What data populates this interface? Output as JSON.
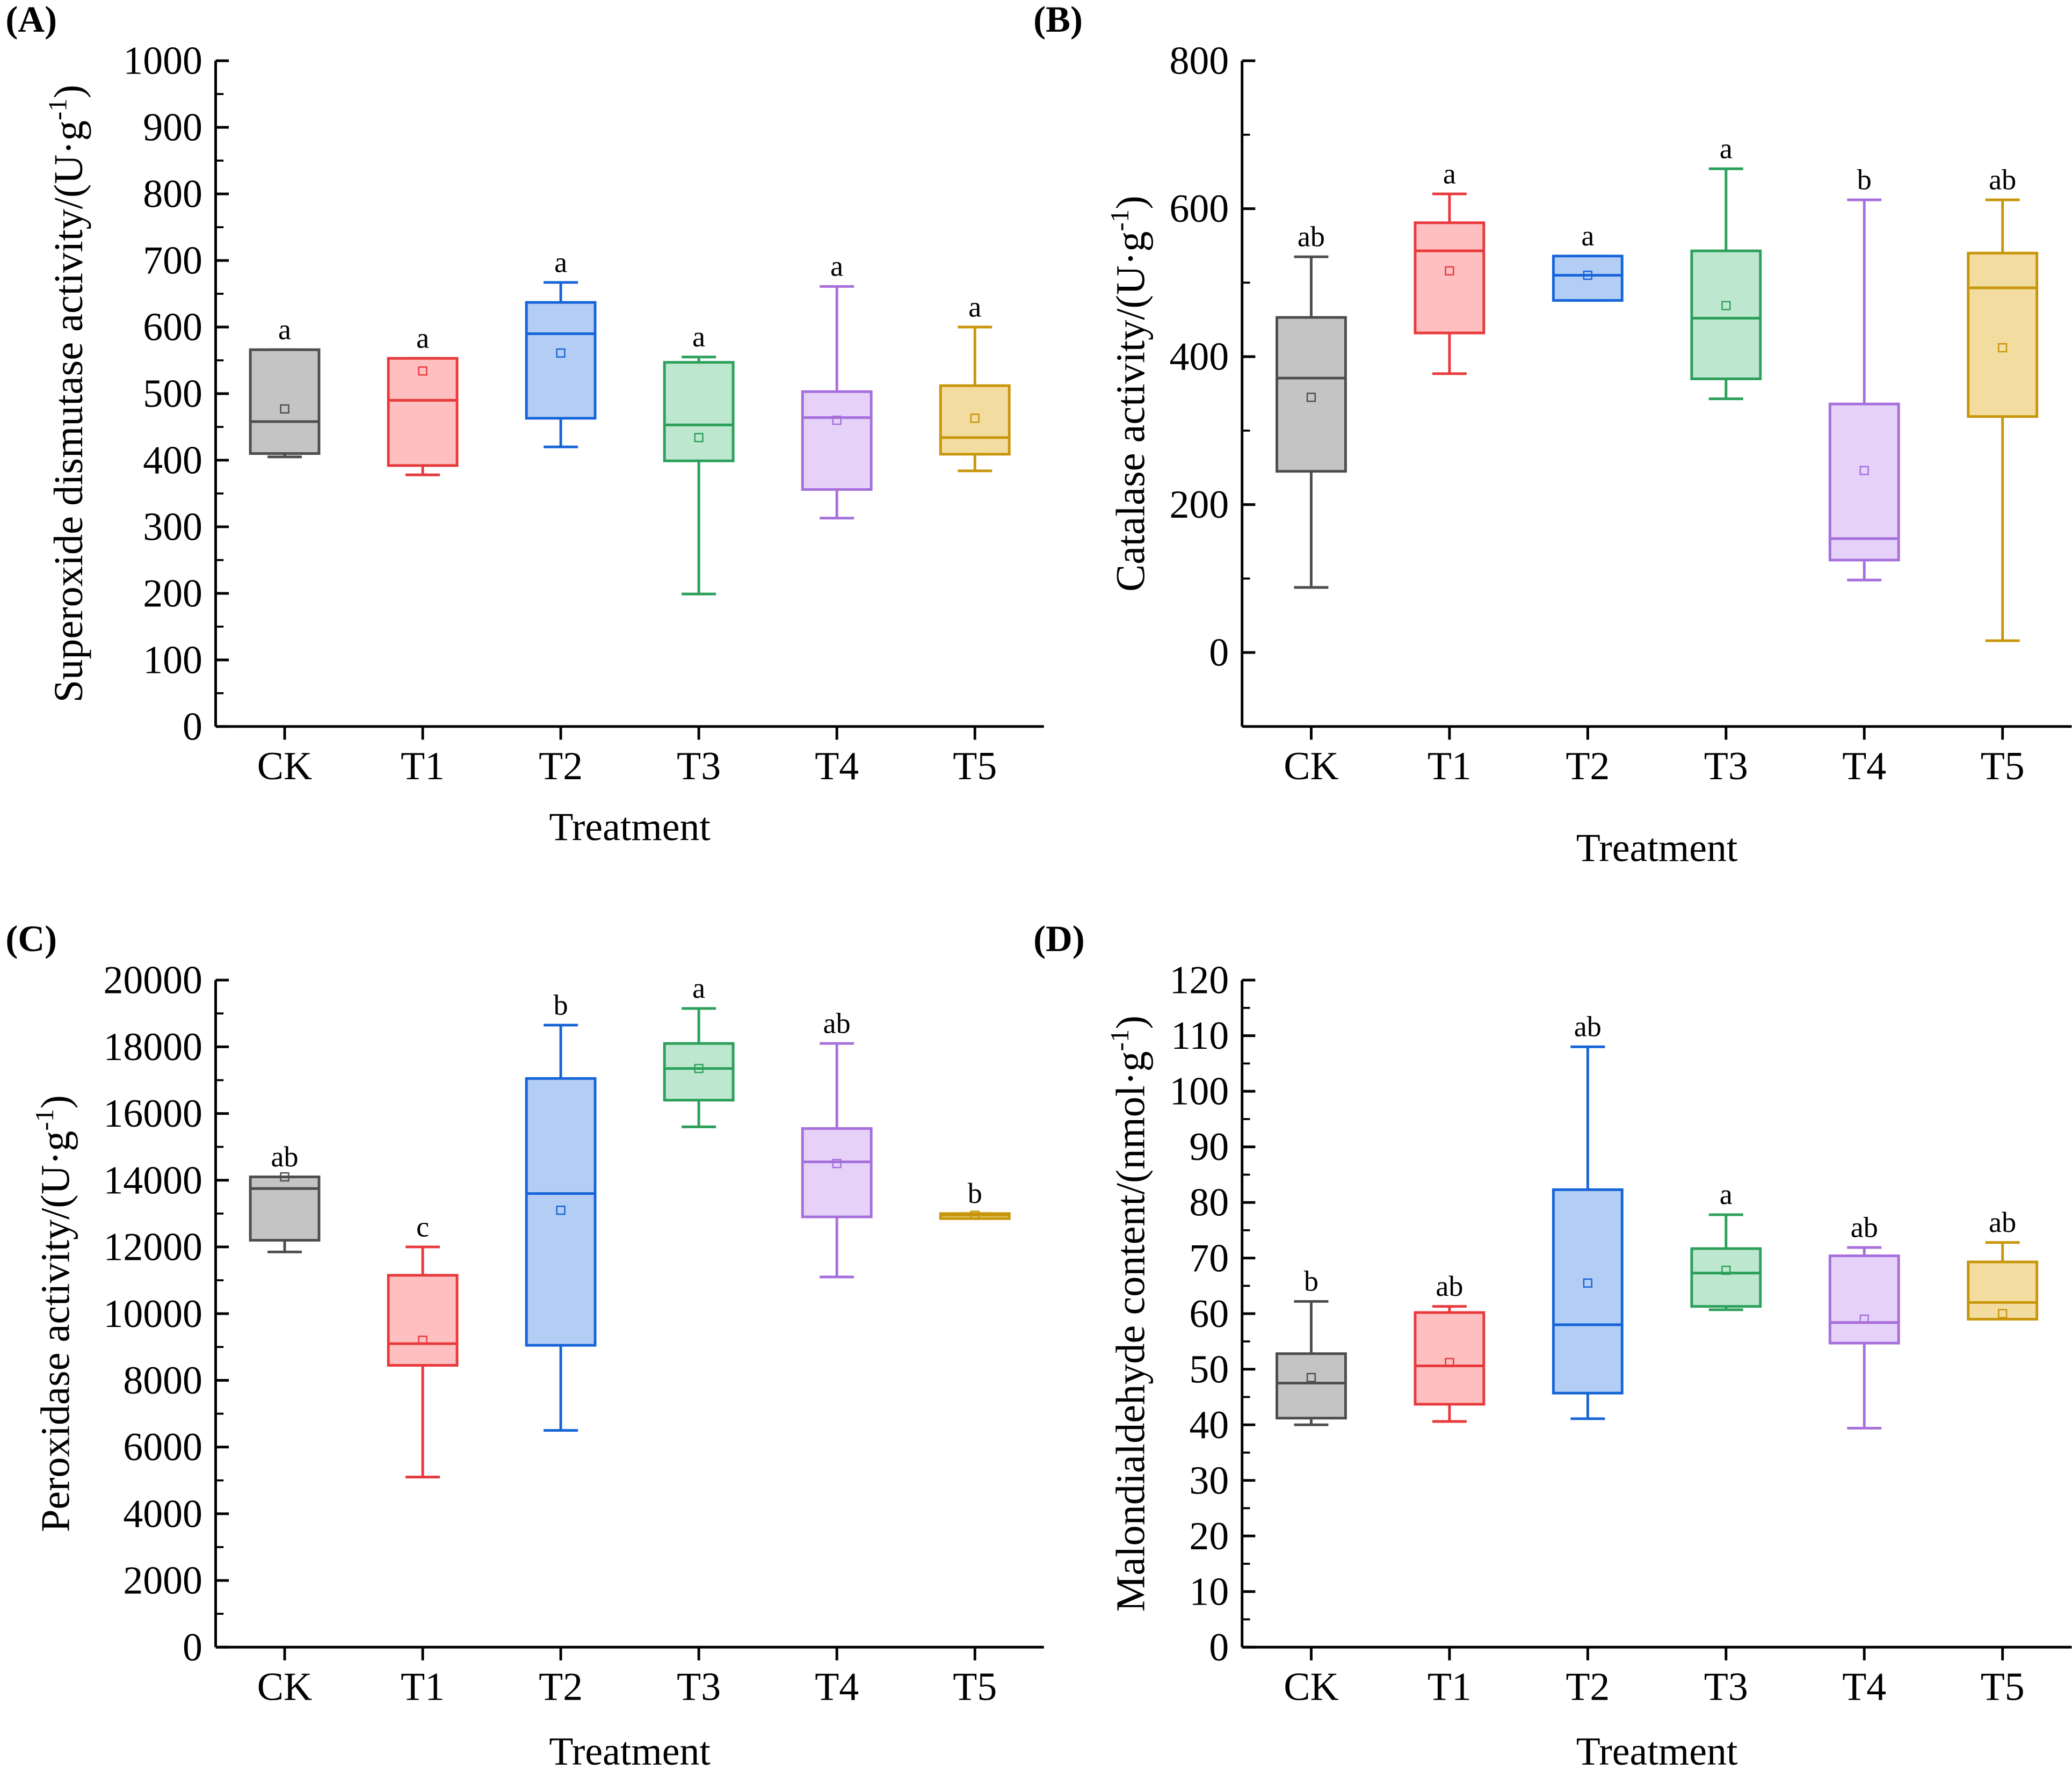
{
  "chart_data": [
    {
      "panel_label": "(A)",
      "type": "box",
      "title": "",
      "xlabel": "Treatment",
      "ylabel": {
        "main": "Superoxide dismutase activity/(U·g",
        "sup": "-1",
        "close": ")"
      },
      "ylim": [
        0,
        1000
      ],
      "yticks": [
        0,
        100,
        200,
        300,
        400,
        500,
        600,
        700,
        800,
        900,
        1000
      ],
      "categories": [
        "CK",
        "T1",
        "T2",
        "T3",
        "T4",
        "T5"
      ],
      "boxes": [
        {
          "min": 405,
          "q1": 410,
          "median": 458,
          "q3": 566,
          "max": 566,
          "mean": 477,
          "letter": "a"
        },
        {
          "min": 378,
          "q1": 392,
          "median": 490,
          "q3": 553,
          "max": 553,
          "mean": 534,
          "letter": "a"
        },
        {
          "min": 420,
          "q1": 463,
          "median": 590,
          "q3": 637,
          "max": 667,
          "mean": 561,
          "letter": "a"
        },
        {
          "min": 199,
          "q1": 399,
          "median": 453,
          "q3": 547,
          "max": 555,
          "mean": 434,
          "letter": "a"
        },
        {
          "min": 313,
          "q1": 356,
          "median": 464,
          "q3": 503,
          "max": 661,
          "mean": 460,
          "letter": "a"
        },
        {
          "min": 384,
          "q1": 409,
          "median": 434,
          "q3": 512,
          "max": 600,
          "mean": 463,
          "letter": "a"
        }
      ]
    },
    {
      "panel_label": "(B)",
      "type": "box",
      "title": "",
      "xlabel": "Treatment",
      "ylabel": {
        "main": "Catalase activity/(U·g",
        "sup": "-1",
        "close": ")"
      },
      "ylim": [
        -100,
        800
      ],
      "yticks": [
        0,
        200,
        400,
        600,
        800
      ],
      "categories": [
        "CK",
        "T1",
        "T2",
        "T3",
        "T4",
        "T5"
      ],
      "boxes": [
        {
          "min": 88,
          "q1": 245,
          "median": 371,
          "q3": 453,
          "max": 535,
          "mean": 345,
          "letter": "ab"
        },
        {
          "min": 377,
          "q1": 432,
          "median": 543,
          "q3": 581,
          "max": 620,
          "mean": 516,
          "letter": "a"
        },
        {
          "min": 476,
          "q1": 476,
          "median": 510,
          "q3": 536,
          "max": 536,
          "mean": 510,
          "letter": "a"
        },
        {
          "min": 343,
          "q1": 370,
          "median": 452,
          "q3": 543,
          "max": 654,
          "mean": 469,
          "letter": "a"
        },
        {
          "min": 98,
          "q1": 125,
          "median": 154,
          "q3": 336,
          "max": 612,
          "mean": 246,
          "letter": "b"
        },
        {
          "min": 16,
          "q1": 319,
          "median": 493,
          "q3": 540,
          "max": 612,
          "mean": 412,
          "letter": "ab"
        }
      ]
    },
    {
      "panel_label": "(C)",
      "type": "box",
      "title": "",
      "xlabel": "Treatment",
      "ylabel": {
        "main": "Peroxidase activity/(U·g",
        "sup": "-1",
        "close": ")"
      },
      "ylim": [
        0,
        20000
      ],
      "yticks": [
        0,
        2000,
        4000,
        6000,
        8000,
        10000,
        12000,
        14000,
        16000,
        18000,
        20000
      ],
      "categories": [
        "CK",
        "T1",
        "T2",
        "T3",
        "T4",
        "T5"
      ],
      "boxes": [
        {
          "min": 11850,
          "q1": 12200,
          "median": 13750,
          "q3": 14100,
          "max": 14100,
          "mean": 14100,
          "letter": "ab"
        },
        {
          "min": 5100,
          "q1": 8450,
          "median": 9100,
          "q3": 11150,
          "max": 12000,
          "mean": 9200,
          "letter": "c"
        },
        {
          "min": 6500,
          "q1": 9050,
          "median": 13600,
          "q3": 17050,
          "max": 18650,
          "mean": 13100,
          "letter": "b"
        },
        {
          "min": 15600,
          "q1": 16400,
          "median": 17350,
          "q3": 18100,
          "max": 19150,
          "mean": 17350,
          "letter": "a"
        },
        {
          "min": 11100,
          "q1": 12900,
          "median": 14550,
          "q3": 15550,
          "max": 18100,
          "mean": 14500,
          "letter": "ab"
        },
        {
          "min": 12850,
          "q1": 12850,
          "median": 12950,
          "q3": 13000,
          "max": 13000,
          "mean": 12950,
          "letter": "b"
        }
      ]
    },
    {
      "panel_label": "(D)",
      "type": "box",
      "title": "",
      "xlabel": "Treatment",
      "ylabel": {
        "main": "Malondialdehyde content/(nmol·g",
        "sup": "-1",
        "close": ")"
      },
      "ylim": [
        0,
        120
      ],
      "yticks": [
        0,
        10,
        20,
        30,
        40,
        50,
        60,
        70,
        80,
        90,
        100,
        110,
        120
      ],
      "categories": [
        "CK",
        "T1",
        "T2",
        "T3",
        "T4",
        "T5"
      ],
      "boxes": [
        {
          "min": 40,
          "q1": 41.2,
          "median": 47.5,
          "q3": 52.8,
          "max": 62.2,
          "mean": 48.5,
          "letter": "b"
        },
        {
          "min": 40.6,
          "q1": 43.7,
          "median": 50.6,
          "q3": 60.2,
          "max": 61.3,
          "mean": 51.2,
          "letter": "ab"
        },
        {
          "min": 41.1,
          "q1": 45.7,
          "median": 58,
          "q3": 82.3,
          "max": 108,
          "mean": 65.5,
          "letter": "ab"
        },
        {
          "min": 60.7,
          "q1": 61.3,
          "median": 67.3,
          "q3": 71.7,
          "max": 77.8,
          "mean": 67.8,
          "letter": "a"
        },
        {
          "min": 39.4,
          "q1": 54.7,
          "median": 58.4,
          "q3": 70.4,
          "max": 71.9,
          "mean": 59,
          "letter": "ab"
        },
        {
          "min": 59,
          "q1": 59,
          "median": 62,
          "q3": 69.3,
          "max": 72.8,
          "mean": 60,
          "letter": "ab"
        }
      ]
    }
  ],
  "colors": {
    "stroke": [
      "#4d4d4d",
      "#e8393c",
      "#1565d8",
      "#2ca05a",
      "#a66fdc",
      "#c8960a"
    ],
    "fill": [
      "#c4c4c4",
      "#fdbfbf",
      "#b3cdf5",
      "#bde8cf",
      "#e6d2f8",
      "#f2dca0"
    ]
  }
}
